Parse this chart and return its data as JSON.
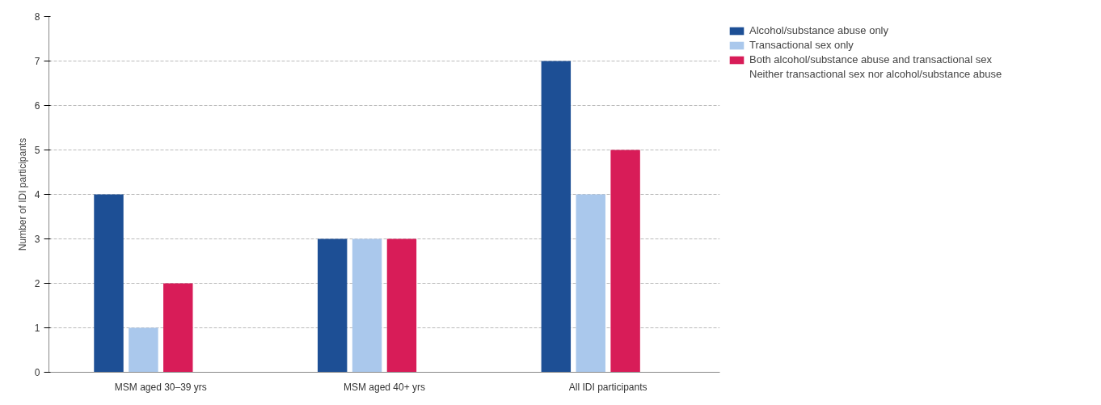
{
  "chart_data": {
    "type": "bar",
    "ylabel": "Number of IDI participants",
    "categories": [
      "MSM aged 30–39 yrs",
      "MSM aged 40+ yrs",
      "All IDI participants"
    ],
    "series": [
      {
        "name": "Alcohol/substance abuse only",
        "color": "#1d4f95",
        "values": [
          4,
          3,
          7
        ]
      },
      {
        "name": "Transactional sex only",
        "color": "#aac8ec",
        "values": [
          1,
          3,
          4
        ]
      },
      {
        "name": "Both alcohol/substance abuse and transactional sex",
        "color": "#d81c58",
        "values": [
          2,
          3,
          5
        ]
      },
      {
        "name": "Neither transactional sex nor alcohol/substance abuse",
        "values": [
          0,
          0,
          0
        ]
      }
    ],
    "ylim": [
      0,
      8
    ],
    "yticks": [
      0,
      1,
      2,
      3,
      4,
      5,
      6,
      7,
      8
    ],
    "grid": "y",
    "legend": "right"
  }
}
